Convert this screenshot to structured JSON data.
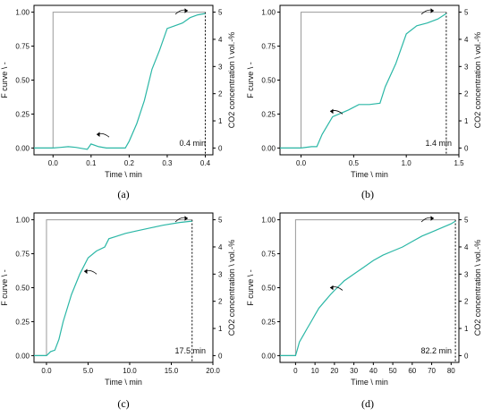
{
  "figure": {
    "colors": {
      "curve": "#2bb7a6",
      "step": "#9a9a9a",
      "axis": "#000000",
      "dotted": "#000000"
    }
  },
  "chart_data": [
    {
      "panel": "(a)",
      "type": "line",
      "xlabel": "Time \\ min",
      "ylabel_left": "F curve \\ -",
      "ylabel_right": "CO2 concentration \\ vol.-%",
      "xlim": [
        -0.05,
        0.42
      ],
      "xticks": [
        "0.0",
        "0.1",
        "0.2",
        "0.3",
        "0.4"
      ],
      "xtick_values": [
        0.0,
        0.1,
        0.2,
        0.3,
        0.4
      ],
      "ylim": [
        -0.05,
        1.05
      ],
      "yticks": [
        "0.00",
        "0.25",
        "0.50",
        "0.75",
        "1.00"
      ],
      "yticks_right": [
        "0",
        "1",
        "2",
        "3",
        "4",
        "5"
      ],
      "annotation": "0.4 min",
      "step_input": {
        "x_start": 0.0,
        "x_end": 0.4
      },
      "dotted_x": 0.4,
      "series": [
        {
          "x": [
            -0.05,
            0.0,
            0.02,
            0.04,
            0.06,
            0.08,
            0.09,
            0.1,
            0.12,
            0.14,
            0.16,
            0.18,
            0.19,
            0.2,
            0.22,
            0.24,
            0.26,
            0.28,
            0.3,
            0.32,
            0.34,
            0.36,
            0.38,
            0.4
          ],
          "values": [
            0.0,
            0.0,
            0.005,
            0.01,
            0.005,
            -0.005,
            -0.01,
            0.03,
            0.01,
            0.0,
            0.0,
            0.0,
            0.0,
            0.05,
            0.18,
            0.35,
            0.58,
            0.72,
            0.88,
            0.9,
            0.92,
            0.96,
            0.98,
            0.99
          ]
        }
      ]
    },
    {
      "panel": "(b)",
      "type": "line",
      "xlabel": "Time \\ min",
      "ylabel_left": "F curve \\ -",
      "ylabel_right": "CO2 concentration \\ vol.-%",
      "xlim": [
        -0.2,
        1.5
      ],
      "xticks": [
        "0.0",
        "0.5",
        "1.0",
        "1.5"
      ],
      "xtick_values": [
        0.0,
        0.5,
        1.0,
        1.5
      ],
      "ylim": [
        -0.05,
        1.05
      ],
      "yticks": [
        "0.00",
        "0.25",
        "0.50",
        "0.75",
        "1.00"
      ],
      "yticks_right": [
        "0",
        "1",
        "2",
        "3",
        "4",
        "5"
      ],
      "annotation": "1.4 min",
      "step_input": {
        "x_start": 0.0,
        "x_end": 1.38
      },
      "dotted_x": 1.38,
      "series": [
        {
          "x": [
            -0.2,
            0.0,
            0.1,
            0.15,
            0.2,
            0.3,
            0.45,
            0.55,
            0.65,
            0.75,
            0.8,
            0.9,
            1.0,
            1.1,
            1.2,
            1.3,
            1.38
          ],
          "values": [
            0.0,
            0.0,
            0.01,
            0.01,
            0.1,
            0.23,
            0.28,
            0.32,
            0.32,
            0.33,
            0.45,
            0.62,
            0.84,
            0.9,
            0.92,
            0.95,
            0.99
          ]
        }
      ]
    },
    {
      "panel": "(c)",
      "type": "line",
      "xlabel": "Time \\ min",
      "ylabel_left": "F curve \\ -",
      "ylabel_right": "CO2 concentration \\ vol.-%",
      "xlim": [
        -1.5,
        20.0
      ],
      "xticks": [
        "0.0",
        "5.0",
        "10.0",
        "15.0",
        "20.0"
      ],
      "xtick_values": [
        0,
        5,
        10,
        15,
        20
      ],
      "ylim": [
        -0.05,
        1.05
      ],
      "yticks": [
        "0.00",
        "0.25",
        "0.50",
        "0.75",
        "1.00"
      ],
      "yticks_right": [
        "0",
        "1",
        "2",
        "3",
        "4",
        "5"
      ],
      "annotation": "17.5 min",
      "step_input": {
        "x_start": 0.0,
        "x_end": 17.5
      },
      "dotted_x": 17.5,
      "series": [
        {
          "x": [
            -1.5,
            0.0,
            0.5,
            1.0,
            1.5,
            2.0,
            3.0,
            4.0,
            5.0,
            6.0,
            7.0,
            7.5,
            8.5,
            9.5,
            11.0,
            12.5,
            14.0,
            16.0,
            17.5
          ],
          "values": [
            0.0,
            0.0,
            0.03,
            0.04,
            0.12,
            0.25,
            0.45,
            0.6,
            0.72,
            0.77,
            0.8,
            0.86,
            0.88,
            0.9,
            0.92,
            0.94,
            0.96,
            0.98,
            0.99
          ]
        }
      ]
    },
    {
      "panel": "(d)",
      "type": "line",
      "xlabel": "Time \\ min",
      "ylabel_left": "F curve \\ -",
      "ylabel_right": "CO2 concentration \\ vol.-%",
      "xlim": [
        -8.0,
        84.0
      ],
      "xticks": [
        "0",
        "10",
        "20",
        "30",
        "40",
        "50",
        "60",
        "70",
        "80"
      ],
      "xtick_values": [
        0,
        10,
        20,
        30,
        40,
        50,
        60,
        70,
        80
      ],
      "ylim": [
        -0.05,
        1.05
      ],
      "yticks": [
        "0.00",
        "0.25",
        "0.50",
        "0.75",
        "1.00"
      ],
      "yticks_right": [
        "0",
        "1",
        "2",
        "3",
        "4",
        "5"
      ],
      "annotation": "82.2 min",
      "step_input": {
        "x_start": 0.0,
        "x_end": 82.2
      },
      "dotted_x": 82.2,
      "series": [
        {
          "x": [
            -8,
            0,
            1,
            2,
            4,
            6,
            8,
            10,
            12,
            15,
            18,
            20,
            25,
            30,
            35,
            40,
            45,
            50,
            55,
            60,
            65,
            70,
            75,
            80,
            82.2
          ],
          "values": [
            0.0,
            0.0,
            0.05,
            0.1,
            0.15,
            0.2,
            0.25,
            0.3,
            0.35,
            0.4,
            0.45,
            0.48,
            0.55,
            0.6,
            0.65,
            0.7,
            0.74,
            0.77,
            0.8,
            0.84,
            0.88,
            0.91,
            0.94,
            0.97,
            0.99
          ]
        }
      ]
    }
  ]
}
